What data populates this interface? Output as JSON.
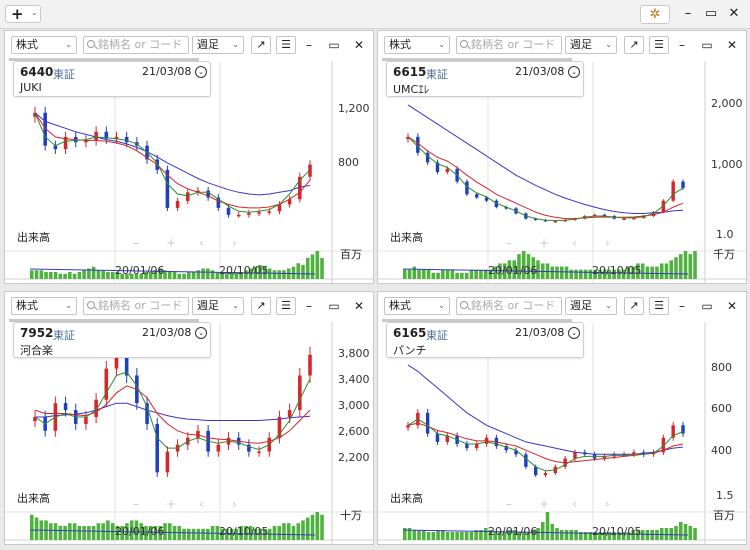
{
  "app": {
    "add_label": "+",
    "add_caret": "⌄",
    "settings_icon": "gear-icon",
    "window_controls": [
      "–",
      "▭",
      "✕"
    ]
  },
  "toolbar": {
    "market": "株式",
    "search_placeholder": "銘柄名 or コード",
    "period": "週足",
    "caret": "⌄",
    "icons": {
      "popout": "↗",
      "menu": "☰",
      "minimize": "–",
      "maximize": "▭",
      "close": "✕"
    }
  },
  "colors": {
    "up": "#d8262b",
    "down": "#1f3fbf",
    "ma_short": "#2e8b2e",
    "ma_mid": "#d8262b",
    "ma_long": "#3a36c8",
    "volume": "#4db33d"
  },
  "panels": [
    {
      "code": "6440",
      "exchange": "東証",
      "date": "21/03/08",
      "name": "JUKI",
      "volume_label": "出来高",
      "volume_unit": "百万",
      "volume_tick": "",
      "y_ticks": [
        "1,200",
        "800"
      ],
      "x_ticks": [
        "20/01/06",
        "20/10/05"
      ],
      "chart_data": {
        "type": "line",
        "ylim": [
          420,
          1380
        ],
        "close": [
          1150,
          960,
          940,
          1010,
          980,
          990,
          1040,
          1000,
          1010,
          980,
          960,
          880,
          820,
          600,
          640,
          690,
          700,
          660,
          600,
          560,
          560,
          570,
          575,
          580,
          620,
          650,
          780,
          850
        ],
        "ma_short": [
          1150,
          1010,
          960,
          985,
          990,
          995,
          1010,
          1005,
          1000,
          990,
          970,
          920,
          860,
          740,
          680,
          670,
          690,
          690,
          650,
          610,
          580,
          575,
          580,
          590,
          620,
          680,
          760,
          820
        ],
        "ma_mid": [
          1150,
          1060,
          1010,
          1000,
          995,
          990,
          990,
          985,
          975,
          960,
          930,
          890,
          850,
          790,
          740,
          710,
          690,
          670,
          640,
          620,
          605,
          600,
          600,
          605,
          620,
          650,
          690,
          760
        ],
        "ma_long": [
          1150,
          1100,
          1080,
          1060,
          1040,
          1025,
          1010,
          995,
          985,
          970,
          950,
          925,
          895,
          860,
          830,
          800,
          770,
          745,
          725,
          705,
          690,
          680,
          675,
          680,
          690,
          700,
          720,
          730
        ]
      },
      "volumes": [
        5,
        5,
        5,
        4,
        4,
        4,
        3,
        3,
        4,
        3,
        4,
        5,
        6,
        7,
        5,
        5,
        4,
        4,
        4,
        3,
        3,
        3,
        3,
        3,
        4,
        4,
        5,
        6,
        5,
        4,
        4,
        3,
        3,
        4,
        4,
        5,
        6,
        6,
        5,
        4,
        4,
        4,
        4,
        4,
        4,
        5,
        6,
        7,
        8,
        7,
        6,
        5,
        5,
        5,
        6,
        7,
        9,
        8,
        12,
        14,
        16,
        12
      ]
    },
    {
      "code": "6615",
      "exchange": "東証",
      "date": "21/03/08",
      "name": "UMCｴﾚ",
      "volume_label": "出来高",
      "volume_unit": "千万",
      "volume_tick": "1.0",
      "y_ticks": [
        "2,000",
        "1,000"
      ],
      "x_ticks": [
        "20/01/06",
        "20/10/05"
      ],
      "chart_data": {
        "type": "line",
        "ylim": [
          200,
          2800
        ],
        "close": [
          1800,
          1550,
          1400,
          1250,
          1300,
          1100,
          900,
          850,
          800,
          700,
          680,
          600,
          520,
          500,
          480,
          480,
          500,
          520,
          560,
          580,
          560,
          520,
          520,
          530,
          560,
          620,
          800,
          1100,
          1000
        ],
        "ma_short": [
          1800,
          1650,
          1500,
          1380,
          1320,
          1200,
          1020,
          920,
          860,
          760,
          700,
          640,
          560,
          520,
          495,
          490,
          495,
          510,
          540,
          560,
          560,
          540,
          530,
          530,
          550,
          600,
          720,
          900,
          1000
        ],
        "ma_mid": [
          1800,
          1700,
          1580,
          1480,
          1420,
          1320,
          1200,
          1090,
          1000,
          900,
          830,
          760,
          690,
          620,
          570,
          540,
          520,
          520,
          530,
          540,
          545,
          540,
          540,
          545,
          560,
          580,
          620,
          700,
          760
        ],
        "ma_long": [
          2300,
          2200,
          2100,
          2000,
          1900,
          1800,
          1700,
          1600,
          1500,
          1400,
          1300,
          1200,
          1120,
          1040,
          970,
          900,
          840,
          790,
          740,
          700,
          660,
          630,
          610,
          600,
          600,
          610,
          620,
          640,
          650
        ]
      },
      "volumes": [
        3,
        3,
        4,
        3,
        3,
        3,
        2,
        2,
        3,
        3,
        3,
        2,
        2,
        2,
        3,
        3,
        3,
        3,
        3,
        4,
        5,
        5,
        6,
        6,
        8,
        9,
        8,
        7,
        6,
        5,
        5,
        4,
        4,
        4,
        4,
        3,
        3,
        3,
        3,
        3,
        3,
        3,
        3,
        3,
        3,
        3,
        3,
        4,
        4,
        5,
        5,
        4,
        4,
        4,
        5,
        5,
        6,
        7,
        8,
        9,
        8,
        9
      ]
    },
    {
      "code": "7952",
      "exchange": "東証",
      "date": "21/03/08",
      "name": "河合楽",
      "volume_label": "出来高",
      "volume_unit": "十万",
      "volume_tick": "",
      "y_ticks": [
        "3,800",
        "3,400",
        "3,000",
        "2,600",
        "2,200"
      ],
      "x_ticks": [
        "20/01/06",
        "20/10/05"
      ],
      "chart_data": {
        "type": "line",
        "ylim": [
          1800,
          4200
        ],
        "close": [
          3000,
          2800,
          3200,
          3100,
          2900,
          3000,
          3250,
          3700,
          3900,
          3600,
          3200,
          2900,
          2200,
          2500,
          2600,
          2700,
          2800,
          2500,
          2600,
          2700,
          2600,
          2500,
          2500,
          2700,
          3000,
          3100,
          3600,
          3900
        ],
        "ma_short": [
          3000,
          2900,
          3000,
          3050,
          3000,
          3000,
          3100,
          3350,
          3600,
          3650,
          3450,
          3150,
          2700,
          2550,
          2550,
          2650,
          2700,
          2650,
          2620,
          2650,
          2630,
          2570,
          2530,
          2600,
          2750,
          2950,
          3250,
          3550
        ],
        "ma_mid": [
          3100,
          3050,
          3050,
          3050,
          3030,
          3020,
          3070,
          3180,
          3350,
          3450,
          3400,
          3280,
          3050,
          2900,
          2800,
          2750,
          2740,
          2700,
          2680,
          2670,
          2650,
          2630,
          2620,
          2650,
          2700,
          2800,
          2950,
          3100
        ],
        "ma_long": [
          3000,
          3000,
          3020,
          3030,
          3040,
          3060,
          3100,
          3150,
          3200,
          3200,
          3150,
          3100,
          3060,
          3020,
          2990,
          2970,
          2960,
          2950,
          2950,
          2950,
          2950,
          2950,
          2950,
          2960,
          2970,
          2990,
          3000,
          3010
        ]
      },
      "volumes": [
        9,
        8,
        7,
        7,
        6,
        6,
        5,
        5,
        6,
        6,
        5,
        5,
        5,
        5,
        6,
        6,
        7,
        6,
        5,
        5,
        6,
        7,
        7,
        6,
        5,
        5,
        5,
        5,
        6,
        6,
        5,
        5,
        4,
        4,
        4,
        4,
        4,
        4,
        5,
        5,
        4,
        4,
        4,
        4,
        5,
        5,
        5,
        4,
        4,
        4,
        4,
        5,
        5,
        6,
        6,
        5,
        6,
        7,
        8,
        9,
        10,
        9
      ]
    },
    {
      "code": "6165",
      "exchange": "東証",
      "date": "21/03/08",
      "name": "パンチ",
      "volume_label": "出来高",
      "volume_unit": "百万",
      "volume_tick": "1.5",
      "y_ticks": [
        "800",
        "600",
        "400"
      ],
      "x_ticks": [
        "20/01/06",
        "20/10/05"
      ],
      "chart_data": {
        "type": "line",
        "ylim": [
          200,
          1000
        ],
        "close": [
          560,
          620,
          520,
          480,
          510,
          470,
          450,
          470,
          500,
          460,
          440,
          420,
          360,
          320,
          330,
          360,
          400,
          430,
          420,
          400,
          410,
          420,
          420,
          430,
          420,
          430,
          500,
          560,
          520
        ],
        "ma_short": [
          560,
          590,
          560,
          520,
          510,
          490,
          470,
          470,
          480,
          470,
          455,
          440,
          400,
          360,
          340,
          345,
          370,
          400,
          410,
          410,
          410,
          415,
          415,
          420,
          420,
          425,
          460,
          510,
          530
        ],
        "ma_mid": [
          560,
          570,
          555,
          535,
          525,
          510,
          495,
          485,
          485,
          480,
          470,
          460,
          440,
          420,
          400,
          385,
          380,
          385,
          390,
          395,
          400,
          405,
          410,
          415,
          420,
          425,
          440,
          460,
          470
        ],
        "ma_long": [
          850,
          820,
          780,
          740,
          700,
          660,
          620,
          590,
          560,
          540,
          520,
          500,
          480,
          470,
          460,
          450,
          440,
          430,
          425,
          420,
          420,
          420,
          420,
          420,
          425,
          430,
          440,
          450,
          455
        ]
      },
      "volumes": [
        6,
        6,
        5,
        5,
        5,
        4,
        4,
        5,
        5,
        4,
        4,
        4,
        4,
        4,
        4,
        5,
        5,
        6,
        5,
        4,
        4,
        4,
        5,
        5,
        4,
        4,
        4,
        5,
        6,
        9,
        14,
        8,
        6,
        5,
        5,
        5,
        5,
        4,
        4,
        4,
        4,
        4,
        4,
        4,
        4,
        4,
        4,
        4,
        5,
        5,
        5,
        5,
        5,
        5,
        6,
        6,
        6,
        7,
        9,
        8,
        7,
        6
      ]
    }
  ]
}
